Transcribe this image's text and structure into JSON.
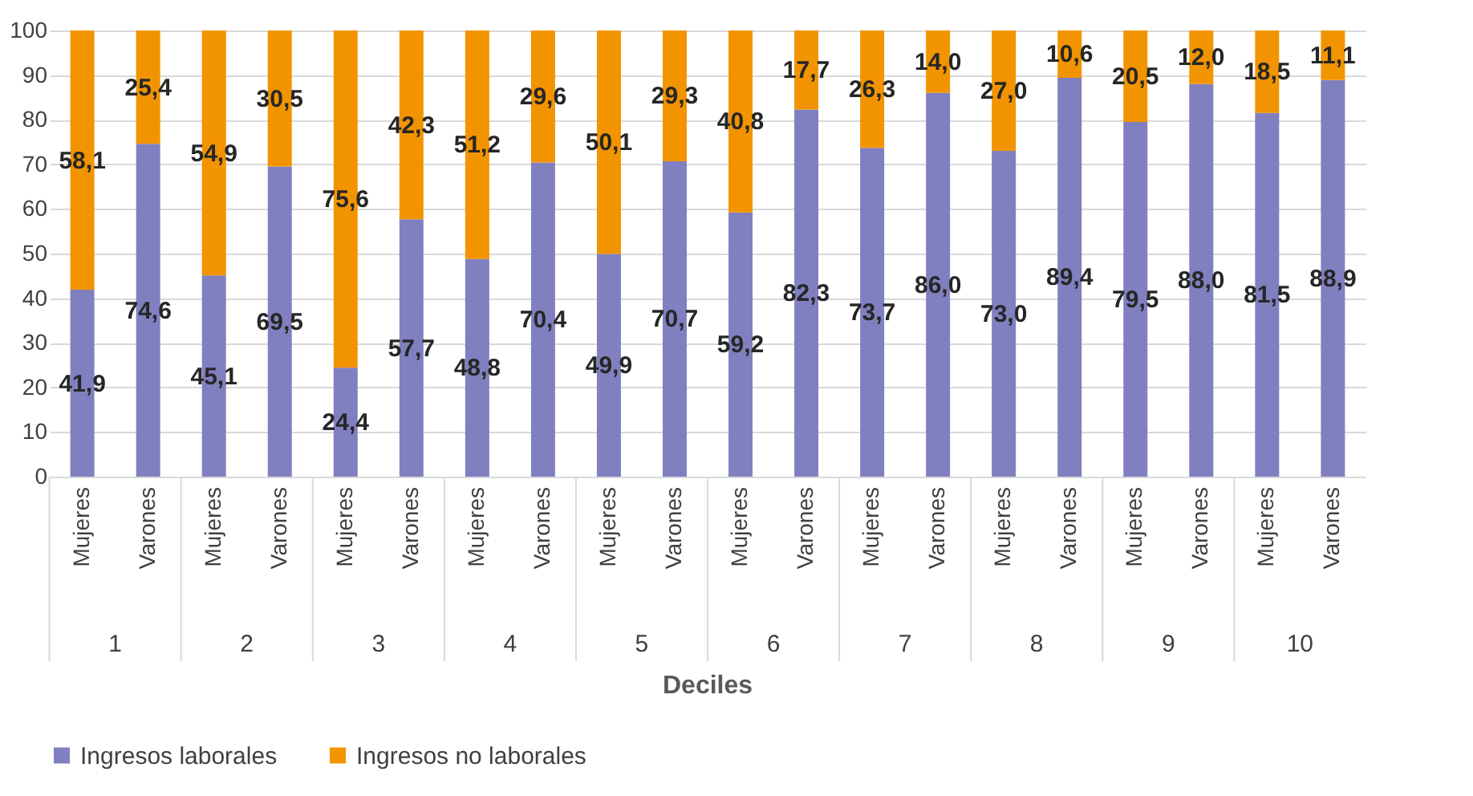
{
  "chart_data": {
    "type": "bar",
    "stacked": true,
    "xlabel": "Deciles",
    "categories": [
      "Mujeres",
      "Varones",
      "Mujeres",
      "Varones",
      "Mujeres",
      "Varones",
      "Mujeres",
      "Varones",
      "Mujeres",
      "Varones",
      "Mujeres",
      "Varones",
      "Mujeres",
      "Varones",
      "Mujeres",
      "Varones",
      "Mujeres",
      "Varones",
      "Mujeres",
      "Varones"
    ],
    "annotations": [
      "1",
      "2",
      "3",
      "4",
      "5",
      "6",
      "7",
      "8",
      "9",
      "10"
    ],
    "series": [
      {
        "name": "Ingresos laborales",
        "color": "#8080c0",
        "values": [
          41.9,
          74.6,
          45.1,
          69.5,
          24.4,
          57.7,
          48.8,
          70.4,
          49.9,
          70.7,
          59.2,
          82.3,
          73.7,
          86.0,
          73.0,
          89.4,
          79.5,
          88.0,
          81.5,
          88.9
        ],
        "value_labels": [
          "41,9",
          "74,6",
          "45,1",
          "69,5",
          "24,4",
          "57,7",
          "48,8",
          "70,4",
          "49,9",
          "70,7",
          "59,2",
          "82,3",
          "73,7",
          "86,0",
          "73,0",
          "89,4",
          "79,5",
          "88,0",
          "81,5",
          "88,9"
        ]
      },
      {
        "name": "Ingresos no laborales",
        "color": "#f29400",
        "values": [
          58.1,
          25.4,
          54.9,
          30.5,
          75.6,
          42.3,
          51.2,
          29.6,
          50.1,
          29.3,
          40.8,
          17.7,
          26.3,
          14.0,
          27.0,
          10.6,
          20.5,
          12.0,
          18.5,
          11.1
        ],
        "value_labels": [
          "58,1",
          "25,4",
          "54,9",
          "30,5",
          "75,6",
          "42,3",
          "51,2",
          "29,6",
          "50,1",
          "29,3",
          "40,8",
          "17,7",
          "26,3",
          "14,0",
          "27,0",
          "10,6",
          "20,5",
          "12,0",
          "18,5",
          "11,1"
        ]
      }
    ],
    "ylim": [
      0,
      100
    ],
    "yticks": [
      0,
      10,
      20,
      30,
      40,
      50,
      60,
      70,
      80,
      90,
      100
    ],
    "grid": "y",
    "legend": "bottom"
  }
}
